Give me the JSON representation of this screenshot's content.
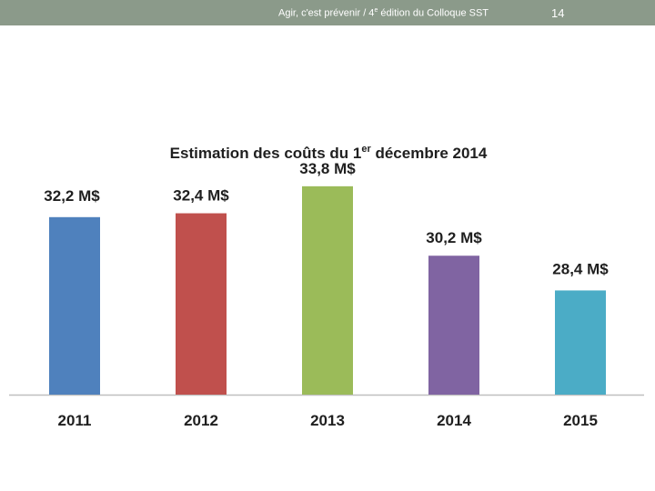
{
  "header": {
    "text_main": "Agir, c'est prévenir / 4",
    "text_sup": "e",
    "text_rest": " édition du Colloque SST",
    "page_number": "14",
    "bar_color": "#8b9a8a"
  },
  "chart_data": {
    "type": "bar",
    "title": "Estimation des coûts du 1",
    "title_sup": "er",
    "title_rest": " décembre 2014",
    "categories": [
      "2011",
      "2012",
      "2013",
      "2014",
      "2015"
    ],
    "values": [
      32.2,
      32.4,
      33.8,
      30.2,
      28.4
    ],
    "labels": [
      "32,2 M$",
      "32,4 M$",
      "33,8 M$",
      "30,2 M$",
      "28,4 M$"
    ],
    "colors": [
      "#4f81bd",
      "#c0504d",
      "#9bbb59",
      "#8064a2",
      "#4bacc6"
    ],
    "unit": "M$",
    "ylim": [
      23,
      34.5
    ],
    "grid": false,
    "legend": "none",
    "xlabel": "",
    "ylabel": ""
  }
}
